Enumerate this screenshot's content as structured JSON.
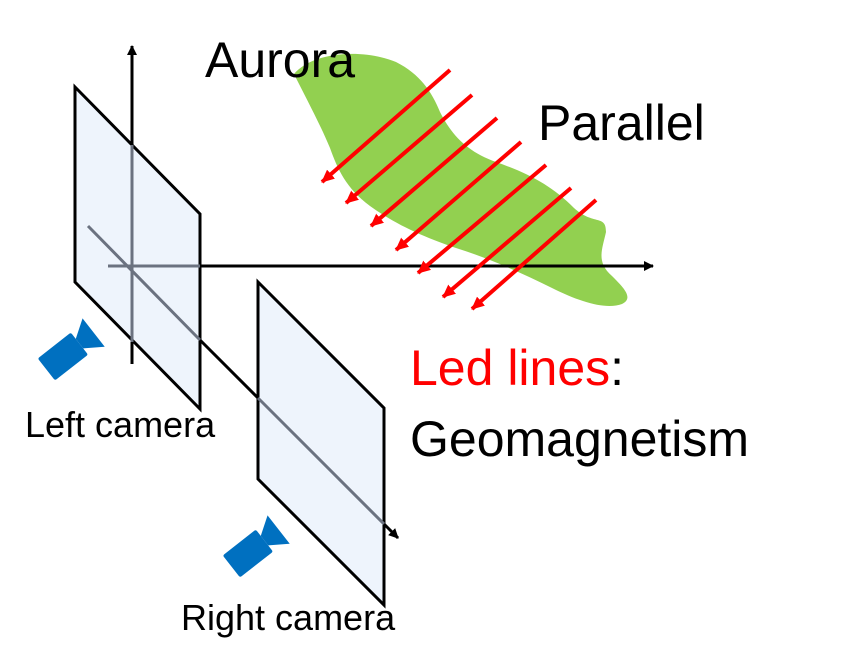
{
  "labels": {
    "aurora": "Aurora",
    "parallel": "Parallel",
    "led_lines": "Led lines",
    "colon": ":",
    "geomagnetism": "Geomagnetism",
    "left_camera": "Left camera",
    "right_camera": "Right camera"
  },
  "colors": {
    "aurora_fill": "#92d050",
    "field_lines": "#ff0000",
    "image_plane_fill": "#eef4fc",
    "image_plane_stroke": "#000000",
    "camera": "#0070c0",
    "axis": "#000000",
    "hidden_axis": "#6b7280",
    "led_lines_text": "#ff0000",
    "text": "#000000"
  },
  "icons": {
    "camera": "video-camera-icon"
  },
  "field_line_count": 8
}
